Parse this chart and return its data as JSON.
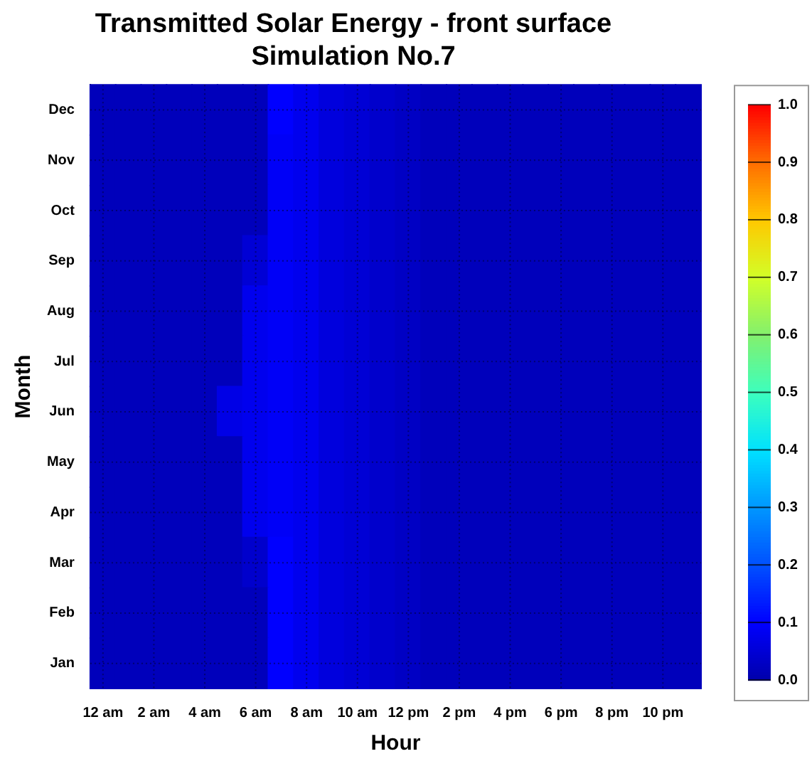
{
  "chart_data": {
    "type": "heatmap",
    "title": "Transmitted Solar Energy - front surface",
    "subtitle": "Simulation No.7",
    "xlabel": "Hour",
    "ylabel": "Month",
    "categories": [
      "12 am",
      null,
      "2 am",
      null,
      "4 am",
      null,
      "6 am",
      null,
      "8 am",
      null,
      "10 am",
      null,
      "12 pm",
      null,
      "2 pm",
      null,
      "4 pm",
      null,
      "6 pm",
      null,
      "8 pm",
      null,
      "10 pm",
      null
    ],
    "y_categories": [
      "Dec",
      "Nov",
      "Oct",
      "Sep",
      "Aug",
      "Jul",
      "Jun",
      "May",
      "Apr",
      "Mar",
      "Feb",
      "Jan"
    ],
    "cells": [
      [
        0.02,
        0.02,
        0.02,
        0.02,
        0.02,
        0.02,
        0.02,
        0.1,
        0.08,
        0.06,
        0.05,
        0.04,
        0.03,
        0.02,
        0.02,
        0.02,
        0.02,
        0.02,
        0.02,
        0.02,
        0.02,
        0.02,
        0.02,
        0.02
      ],
      [
        0.02,
        0.02,
        0.02,
        0.02,
        0.02,
        0.02,
        0.02,
        0.09,
        0.08,
        0.06,
        0.05,
        0.04,
        0.03,
        0.02,
        0.02,
        0.02,
        0.02,
        0.02,
        0.02,
        0.02,
        0.02,
        0.02,
        0.02,
        0.02
      ],
      [
        0.02,
        0.02,
        0.02,
        0.02,
        0.02,
        0.02,
        0.02,
        0.09,
        0.08,
        0.06,
        0.05,
        0.04,
        0.03,
        0.02,
        0.02,
        0.02,
        0.02,
        0.02,
        0.02,
        0.02,
        0.02,
        0.02,
        0.02,
        0.02
      ],
      [
        0.02,
        0.02,
        0.02,
        0.02,
        0.02,
        0.02,
        0.05,
        0.09,
        0.08,
        0.06,
        0.05,
        0.04,
        0.03,
        0.02,
        0.02,
        0.02,
        0.02,
        0.02,
        0.02,
        0.02,
        0.02,
        0.02,
        0.02,
        0.02
      ],
      [
        0.02,
        0.02,
        0.02,
        0.02,
        0.02,
        0.02,
        0.08,
        0.09,
        0.08,
        0.06,
        0.05,
        0.04,
        0.03,
        0.02,
        0.02,
        0.02,
        0.02,
        0.02,
        0.02,
        0.02,
        0.02,
        0.02,
        0.02,
        0.02
      ],
      [
        0.02,
        0.02,
        0.02,
        0.02,
        0.02,
        0.02,
        0.08,
        0.09,
        0.08,
        0.06,
        0.05,
        0.04,
        0.03,
        0.02,
        0.02,
        0.02,
        0.02,
        0.02,
        0.02,
        0.02,
        0.02,
        0.02,
        0.02,
        0.02
      ],
      [
        0.02,
        0.02,
        0.02,
        0.02,
        0.02,
        0.07,
        0.08,
        0.09,
        0.08,
        0.06,
        0.05,
        0.04,
        0.03,
        0.02,
        0.02,
        0.02,
        0.02,
        0.02,
        0.02,
        0.02,
        0.02,
        0.02,
        0.02,
        0.02
      ],
      [
        0.02,
        0.02,
        0.02,
        0.02,
        0.02,
        0.02,
        0.08,
        0.09,
        0.08,
        0.06,
        0.05,
        0.04,
        0.03,
        0.02,
        0.02,
        0.02,
        0.02,
        0.02,
        0.02,
        0.02,
        0.02,
        0.02,
        0.02,
        0.02
      ],
      [
        0.02,
        0.02,
        0.02,
        0.02,
        0.02,
        0.02,
        0.08,
        0.09,
        0.08,
        0.06,
        0.05,
        0.04,
        0.03,
        0.02,
        0.02,
        0.02,
        0.02,
        0.02,
        0.02,
        0.02,
        0.02,
        0.02,
        0.02,
        0.02
      ],
      [
        0.02,
        0.02,
        0.02,
        0.02,
        0.02,
        0.02,
        0.04,
        0.1,
        0.08,
        0.06,
        0.05,
        0.04,
        0.03,
        0.02,
        0.02,
        0.02,
        0.02,
        0.02,
        0.02,
        0.02,
        0.02,
        0.02,
        0.02,
        0.02
      ],
      [
        0.02,
        0.02,
        0.02,
        0.02,
        0.02,
        0.02,
        0.02,
        0.1,
        0.08,
        0.06,
        0.05,
        0.04,
        0.03,
        0.02,
        0.02,
        0.02,
        0.02,
        0.02,
        0.02,
        0.02,
        0.02,
        0.02,
        0.02,
        0.02
      ],
      [
        0.02,
        0.02,
        0.02,
        0.02,
        0.02,
        0.02,
        0.02,
        0.1,
        0.08,
        0.06,
        0.05,
        0.04,
        0.03,
        0.02,
        0.02,
        0.02,
        0.02,
        0.02,
        0.02,
        0.02,
        0.02,
        0.02,
        0.02,
        0.02
      ]
    ],
    "clim": [
      0,
      1
    ],
    "cticks": [
      {
        "value": 0,
        "label": "0.0"
      },
      0.1,
      0.2,
      0.3,
      0.4,
      0.5,
      0.6,
      0.7,
      0.8,
      0.9,
      {
        "value": 1,
        "label": "1.0"
      }
    ],
    "grid": true
  }
}
